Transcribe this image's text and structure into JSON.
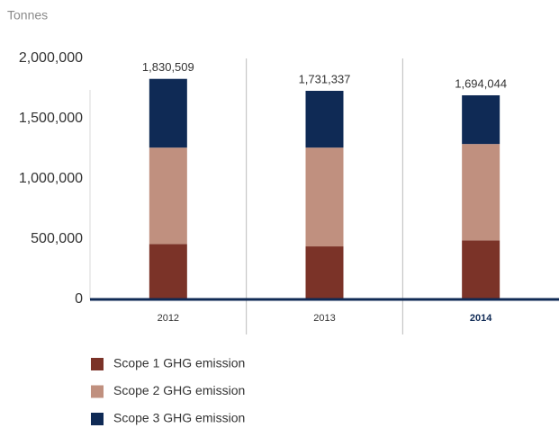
{
  "chart_data": {
    "type": "stacked_bar",
    "y_label": "Tonnes",
    "categories": [
      "2012",
      "2013",
      "2014"
    ],
    "highlight": 2,
    "series": [
      {
        "name": "Scope 1 GHG emission",
        "color": "#7b3328",
        "values": [
          460000,
          440000,
          490000
        ]
      },
      {
        "name": "Scope 2 GHG emission",
        "color": "#c0907f",
        "values": [
          800000,
          820000,
          800000
        ]
      },
      {
        "name": "Scope 3 GHG emission",
        "color": "#0f2a55",
        "values": [
          570509,
          471337,
          404044
        ]
      }
    ],
    "totals": {
      "values": [
        1830509,
        1731337,
        1694044
      ],
      "value_labels": [
        "1,830,509",
        "1,731,337",
        "1,694,044"
      ]
    },
    "ylim": [
      0,
      2000000
    ],
    "yticks": [
      0,
      {
        "value": 500000,
        "label": "500,000"
      },
      {
        "value": 1000000,
        "label": "1,000,000"
      },
      {
        "value": 1500000,
        "label": "1,500,000"
      },
      {
        "value": 2000000,
        "label": "2,000,000"
      }
    ]
  }
}
